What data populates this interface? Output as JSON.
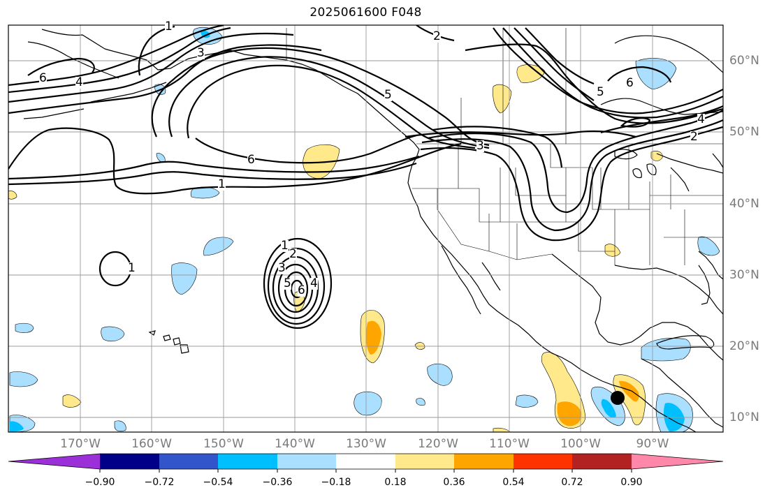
{
  "title": "2025061600 F048",
  "map": {
    "projection": "plate-carree",
    "lon_range": [
      -180,
      -80
    ],
    "lat_range": [
      8,
      65
    ],
    "grid": true
  },
  "lat_labels": [
    "60°N",
    "50°N",
    "40°N",
    "30°N",
    "20°N",
    "10°N"
  ],
  "lon_labels": [
    "170°W",
    "160°W",
    "150°W",
    "140°W",
    "130°W",
    "120°W",
    "110°W",
    "100°W",
    "90°W"
  ],
  "colorbar": {
    "tick_labels": [
      "−0.90",
      "−0.72",
      "−0.54",
      "−0.36",
      "−0.18",
      "0.18",
      "0.36",
      "0.54",
      "0.72",
      "0.90"
    ],
    "colors": [
      "#9b30d9",
      "#000088",
      "#3355cc",
      "#00bfff",
      "#aadfff",
      "#ffffff",
      "#ffe98a",
      "#ffa500",
      "#ff3300",
      "#b22222",
      "#ff88aa"
    ],
    "extend": "both"
  },
  "contour_labels": [
    "6",
    "4",
    "3",
    "2",
    "1",
    "5",
    "6",
    "3",
    "2",
    "4",
    "5",
    "6",
    "1",
    "1",
    "2",
    "3",
    "4",
    "5",
    "6",
    "1"
  ],
  "marker": {
    "type": "dot",
    "color": "#000000",
    "lon": -94.5,
    "lat": 12.7
  }
}
